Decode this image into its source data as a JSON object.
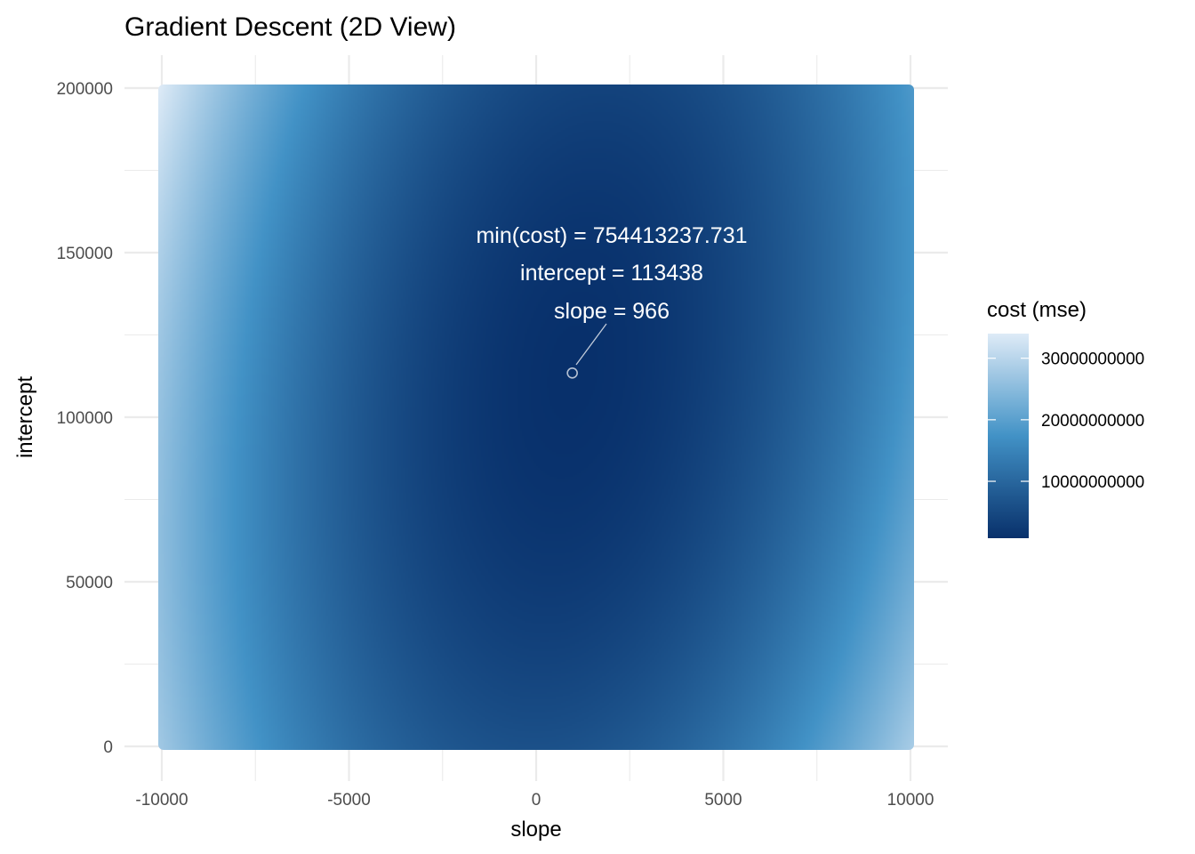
{
  "chart_data": {
    "type": "heatmap",
    "title": "Gradient Descent (2D View)",
    "xlabel": "slope",
    "ylabel": "intercept",
    "xlim": [
      -10000,
      10000
    ],
    "ylim": [
      0,
      200000
    ],
    "x_ticks": [
      -10000,
      -5000,
      0,
      5000,
      10000
    ],
    "x_tick_labels": [
      "-10000",
      "-5000",
      "0",
      "5000",
      "10000"
    ],
    "y_ticks": [
      0,
      50000,
      100000,
      150000,
      200000
    ],
    "y_tick_labels": [
      "0",
      "50000",
      "100000",
      "150000",
      "200000"
    ],
    "grid": true,
    "colorscale": {
      "name": "cost (mse)",
      "low_color": "#08306b",
      "mid_color": "#4292c6",
      "high_color": "#deebf7",
      "ticks": [
        10000000000,
        20000000000,
        30000000000
      ],
      "tick_labels": [
        "10000000000",
        "20000000000",
        "30000000000"
      ],
      "range": [
        754413237.731,
        34000000000
      ]
    },
    "minimum": {
      "slope": 966,
      "intercept": 113438,
      "cost": 754413237.731
    },
    "annotation_lines": [
      "min(cost) = 754413237.731",
      "intercept = 113438",
      "slope = 966"
    ],
    "legend_position": "right"
  }
}
